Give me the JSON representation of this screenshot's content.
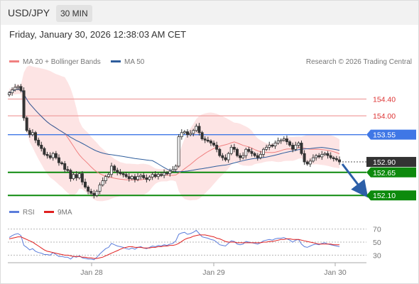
{
  "header": {
    "symbol": "USD/JPY",
    "timeframe": "30 MIN"
  },
  "datetime": "Friday, January 30, 2026 12:38:03 AM CET",
  "copyright": "Research © 2026 Trading Central",
  "price_legend": [
    {
      "label": "MA 20 + Bollinger Bands",
      "color": "#f08080"
    },
    {
      "label": "MA 50",
      "color": "#2e5d9c"
    }
  ],
  "rsi_legend": [
    {
      "label": "RSI",
      "color": "#5b7ddb"
    },
    {
      "label": "9MA",
      "color": "#e02020"
    }
  ],
  "colors": {
    "resistance": "#f0a0a0",
    "pivot": "#3f77e6",
    "support": "#0d8a0d",
    "arrow": "#2c5fa8",
    "current": "#333333"
  },
  "chart_data": [
    {
      "type": "candlestick",
      "title": "USD/JPY",
      "ylim": [
        151.85,
        154.9
      ],
      "x_ticks": [
        "Jan 28",
        "Jan 29",
        "Jan 30"
      ],
      "levels": [
        {
          "value": 154.4,
          "label": "154.40",
          "kind": "resistance"
        },
        {
          "value": 154.0,
          "label": "154.00",
          "kind": "resistance"
        },
        {
          "value": 153.55,
          "label": "153.55",
          "kind": "pivot"
        },
        {
          "value": 152.9,
          "label": "152.90",
          "kind": "current"
        },
        {
          "value": 152.65,
          "label": "152.65",
          "kind": "support"
        },
        {
          "value": 152.1,
          "label": "152.10",
          "kind": "support"
        }
      ],
      "close": [
        154.55,
        154.62,
        154.68,
        154.7,
        154.6,
        153.95,
        153.65,
        153.55,
        153.6,
        153.42,
        153.3,
        153.22,
        153.08,
        153.05,
        153.0,
        153.1,
        153.0,
        152.88,
        152.86,
        152.72,
        152.7,
        152.5,
        152.6,
        152.52,
        152.62,
        152.42,
        152.3,
        152.2,
        152.15,
        152.1,
        152.2,
        152.35,
        152.45,
        152.55,
        152.6,
        152.8,
        152.7,
        152.65,
        152.62,
        152.6,
        152.55,
        152.5,
        152.55,
        152.48,
        152.55,
        152.58,
        152.52,
        152.48,
        152.54,
        152.6,
        152.55,
        152.6,
        152.58,
        152.64,
        152.62,
        152.68,
        152.72,
        152.8,
        153.5,
        153.6,
        153.62,
        153.55,
        153.58,
        153.65,
        153.75,
        153.6,
        153.45,
        153.42,
        153.4,
        153.35,
        153.3,
        153.2,
        153.05,
        153.0,
        152.95,
        153.1,
        153.25,
        153.2,
        153.05,
        153.0,
        153.05,
        153.2,
        153.15,
        153.1,
        153.05,
        153.0,
        153.08,
        153.2,
        153.25,
        153.3,
        153.28,
        153.35,
        153.4,
        153.42,
        153.45,
        153.38,
        153.3,
        153.2,
        153.3,
        153.35,
        153.1,
        152.9,
        152.85,
        152.92,
        153.0,
        153.05,
        153.02,
        153.08,
        153.1,
        153.05,
        153.0,
        152.98,
        152.95,
        152.9
      ],
      "ma20_bb": {
        "mid": "20-period moving average",
        "bands": "Bollinger"
      },
      "ma50": "50-period moving average"
    },
    {
      "type": "line",
      "title": "RSI",
      "ylim": [
        25,
        75
      ],
      "y_ticks": [
        70,
        50,
        30
      ],
      "series": [
        {
          "name": "RSI",
          "values": [
            57,
            60,
            62,
            63,
            60,
            45,
            42,
            38,
            40,
            36,
            34,
            33,
            31,
            31,
            30,
            34,
            31,
            28,
            28,
            27,
            27,
            24,
            28,
            27,
            29,
            26,
            25,
            24,
            24,
            23,
            27,
            32,
            36,
            40,
            42,
            48,
            46,
            44,
            43,
            42,
            40,
            39,
            41,
            39,
            42,
            43,
            41,
            40,
            42,
            44,
            43,
            45,
            44,
            46,
            45,
            47,
            48,
            52,
            62,
            64,
            65,
            62,
            63,
            65,
            68,
            63,
            58,
            57,
            56,
            54,
            53,
            50,
            46,
            45,
            44,
            48,
            52,
            51,
            47,
            46,
            47,
            51,
            50,
            49,
            48,
            47,
            49,
            52,
            53,
            54,
            53,
            55,
            56,
            56,
            57,
            55,
            53,
            50,
            53,
            54,
            47,
            43,
            42,
            44,
            46,
            47,
            46,
            48,
            49,
            47,
            46,
            45,
            44,
            43
          ]
        },
        {
          "name": "9MA",
          "values": [
            55,
            56,
            57,
            58,
            58,
            56,
            54,
            52,
            50,
            47,
            44,
            41,
            38,
            36,
            35,
            34,
            33,
            32,
            31,
            30,
            30,
            29,
            28,
            28,
            28,
            27,
            27,
            26,
            26,
            25,
            25,
            26,
            27,
            29,
            31,
            33,
            35,
            37,
            39,
            41,
            42,
            43,
            43,
            42,
            42,
            42,
            41,
            41,
            41,
            42,
            42,
            43,
            43,
            44,
            44,
            45,
            45,
            46,
            48,
            51,
            54,
            56,
            57,
            59,
            60,
            61,
            61,
            61,
            60,
            59,
            58,
            56,
            55,
            53,
            51,
            50,
            50,
            50,
            49,
            49,
            49,
            49,
            49,
            49,
            49,
            49,
            49,
            50,
            50,
            51,
            51,
            52,
            53,
            54,
            54,
            55,
            55,
            54,
            54,
            54,
            53,
            52,
            51,
            50,
            49,
            48,
            47,
            47,
            47,
            47,
            47,
            46,
            46,
            46
          ]
        }
      ]
    }
  ]
}
